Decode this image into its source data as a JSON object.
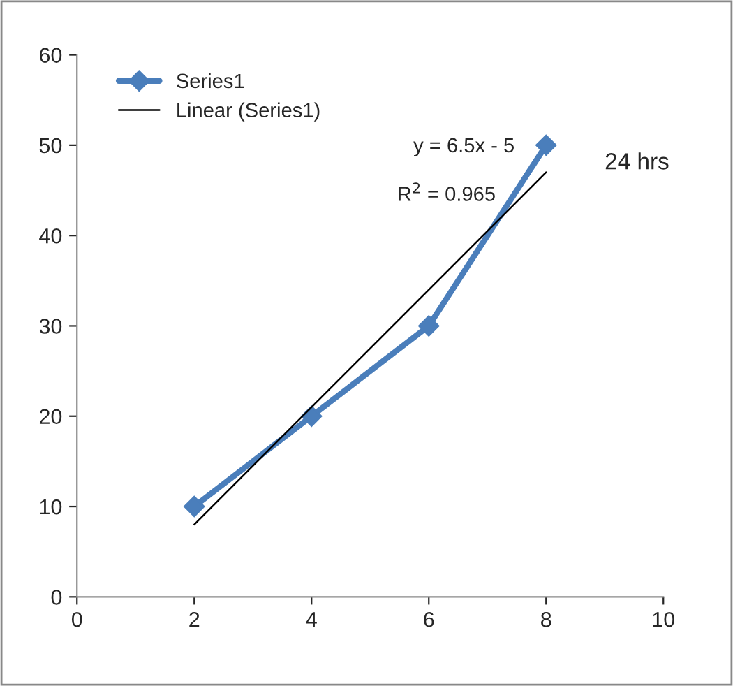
{
  "chart_data": {
    "type": "line",
    "x": [
      2,
      4,
      6,
      8
    ],
    "series": [
      {
        "name": "Series1",
        "color": "#4a7ebb",
        "values": [
          10,
          20,
          30,
          50
        ],
        "marker": "diamond"
      },
      {
        "name": "Linear (Series1)",
        "type": "line",
        "color": "#000000",
        "x": [
          2,
          8
        ],
        "values": [
          8,
          47
        ],
        "marker": "none"
      }
    ],
    "xlim": [
      0,
      10
    ],
    "xticks": [
      0,
      2,
      4,
      6,
      8,
      10
    ],
    "ylim": [
      0,
      60
    ],
    "yticks": [
      0,
      10,
      20,
      30,
      40,
      50,
      60
    ],
    "grid": false,
    "legend": "top left",
    "annotations": [
      "y = 6.5x - 5",
      "R$^{2}$ = 0.965",
      "24 hrs"
    ]
  }
}
